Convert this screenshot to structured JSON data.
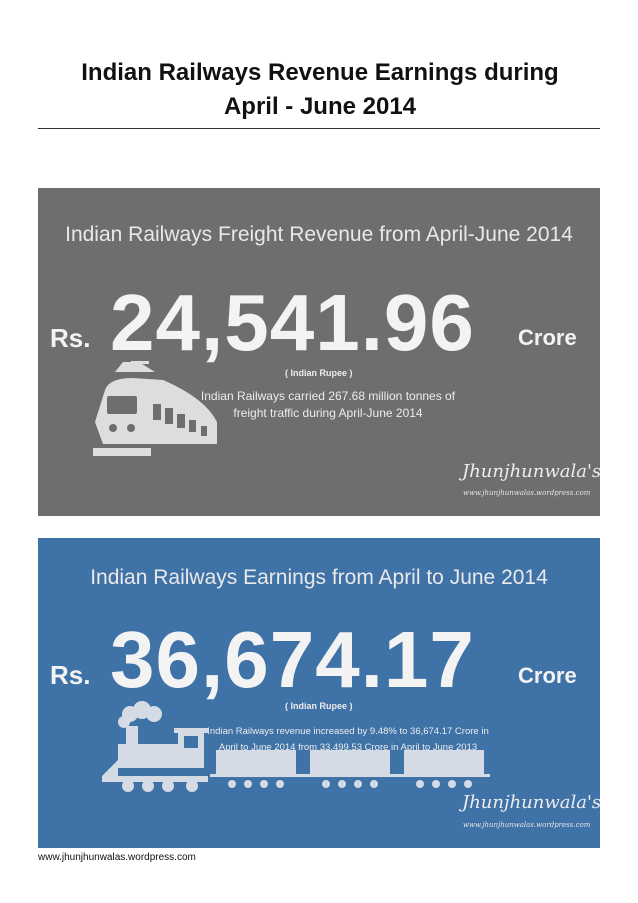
{
  "document": {
    "title_line1": "Indian Railways Revenue Earnings during",
    "title_line2": "April - June 2014",
    "footer_url": "www.jhunjhunwalas.wordpress.com"
  },
  "freight_panel": {
    "heading": "Indian Railways Freight Revenue from April-June 2014",
    "currency": "Rs.",
    "amount": "24,541.96",
    "unit": "Crore",
    "unit_note": "( Indian Rupee )",
    "description_line1": "Indian Railways carried 267.68 million tonnes of",
    "description_line2": "freight traffic during April-June 2014",
    "signature": "Jhunjhunwala's",
    "website": "www.jhunjhunwalas.wordpress.com",
    "background_color": "#6e6e6e",
    "icon": "electric-train-icon"
  },
  "earnings_panel": {
    "heading": "Indian Railways Earnings from April to June 2014",
    "currency": "Rs.",
    "amount": "36,674.17",
    "unit": "Crore",
    "unit_note": "( Indian Rupee )",
    "description_line1": "Indian Railways revenue increased by 9.48% to 36,674.17 Crore in",
    "description_line2": "April to June 2014 from 33,499.53 Crore in April to June 2013",
    "signature": "Jhunjhunwala's",
    "website": "www.jhunjhunwalas.wordpress.com",
    "background_color": "#3f72a6",
    "icon": "steam-locomotive-icon"
  }
}
